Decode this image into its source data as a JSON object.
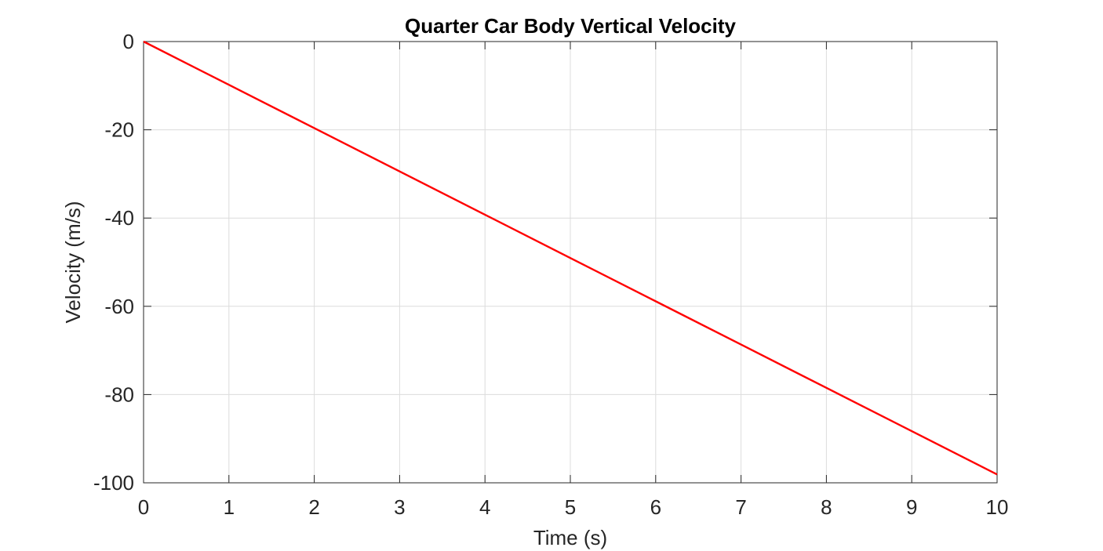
{
  "chart_data": {
    "type": "line",
    "title": "Quarter Car Body Vertical Velocity",
    "xlabel": "Time (s)",
    "ylabel": "Velocity (m/s)",
    "xlim": [
      0,
      10
    ],
    "ylim": [
      -100,
      0
    ],
    "xticks": [
      0,
      1,
      2,
      3,
      4,
      5,
      6,
      7,
      8,
      9,
      10
    ],
    "yticks": [
      0,
      -20,
      -40,
      -60,
      -80,
      -100
    ],
    "grid": true,
    "legend": "none",
    "series": [
      {
        "color": "#ff0000",
        "x": [
          0,
          1,
          2,
          3,
          4,
          5,
          6,
          7,
          8,
          9,
          10
        ],
        "y": [
          0,
          -9.81,
          -19.62,
          -29.43,
          -39.24,
          -49.05,
          -58.86,
          -68.67,
          -78.48,
          -88.29,
          -98.1
        ]
      }
    ]
  }
}
